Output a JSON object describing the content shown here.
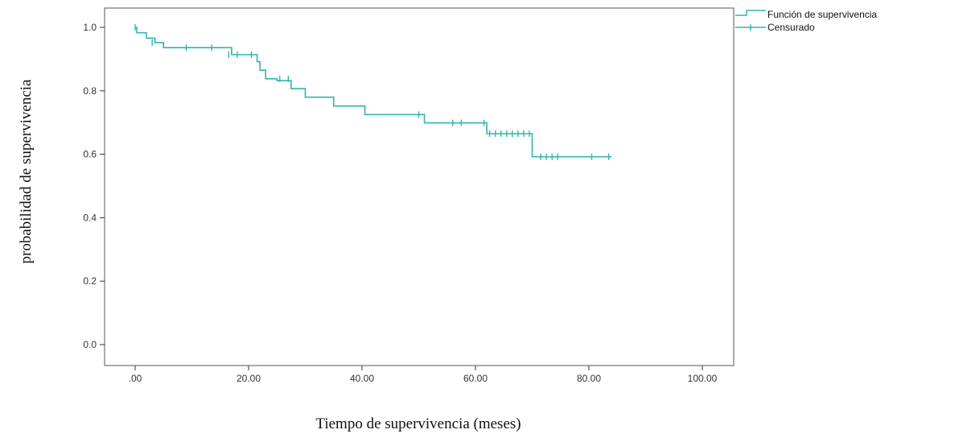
{
  "chart_data": {
    "type": "line",
    "title": "",
    "xlabel": "Tiempo de supervivencia (meses)",
    "ylabel": "probabilidad de supervivencia",
    "xlim": [
      0,
      100
    ],
    "ylim": [
      0,
      1
    ],
    "xticks": [
      0,
      20,
      40,
      60,
      80,
      100
    ],
    "xtick_labels": [
      ".00",
      "20.00",
      "40.00",
      "60.00",
      "80.00",
      "100.00"
    ],
    "yticks": [
      0,
      0.2,
      0.4,
      0.6,
      0.8,
      1.0
    ],
    "ytick_labels": [
      "0.0",
      "0.2",
      "0.4",
      "0.6",
      "0.8",
      "1.0"
    ],
    "grid": false,
    "legend_position": "top-right, outside plot",
    "line_color": "#2fb5b0",
    "series": [
      {
        "name": "Función de supervivencia",
        "style": "step",
        "x": [
          0,
          0.3,
          2,
          3.5,
          5,
          17,
          21.5,
          22,
          23,
          25,
          27.5,
          30,
          35,
          40.5,
          51,
          62,
          70,
          84
        ],
        "y": [
          1.0,
          0.983,
          0.966,
          0.952,
          0.936,
          0.914,
          0.892,
          0.865,
          0.838,
          0.832,
          0.807,
          0.78,
          0.752,
          0.725,
          0.699,
          0.665,
          0.592,
          0.592
        ]
      },
      {
        "name": "Censurado",
        "style": "censor-marks",
        "x": [
          0,
          3,
          9,
          13.5,
          16.5,
          18,
          20.5,
          25.5,
          27,
          50,
          56,
          57.5,
          61.5,
          62.5,
          63.5,
          64.5,
          65.5,
          66.5,
          67.5,
          68.5,
          69.5,
          71.5,
          72.5,
          73.5,
          74.5,
          80.5,
          83.5
        ],
        "y": [
          1.0,
          0.952,
          0.936,
          0.936,
          0.914,
          0.914,
          0.914,
          0.838,
          0.838,
          0.725,
          0.699,
          0.699,
          0.699,
          0.665,
          0.665,
          0.665,
          0.665,
          0.665,
          0.665,
          0.665,
          0.665,
          0.592,
          0.592,
          0.592,
          0.592,
          0.592,
          0.592
        ]
      }
    ]
  }
}
